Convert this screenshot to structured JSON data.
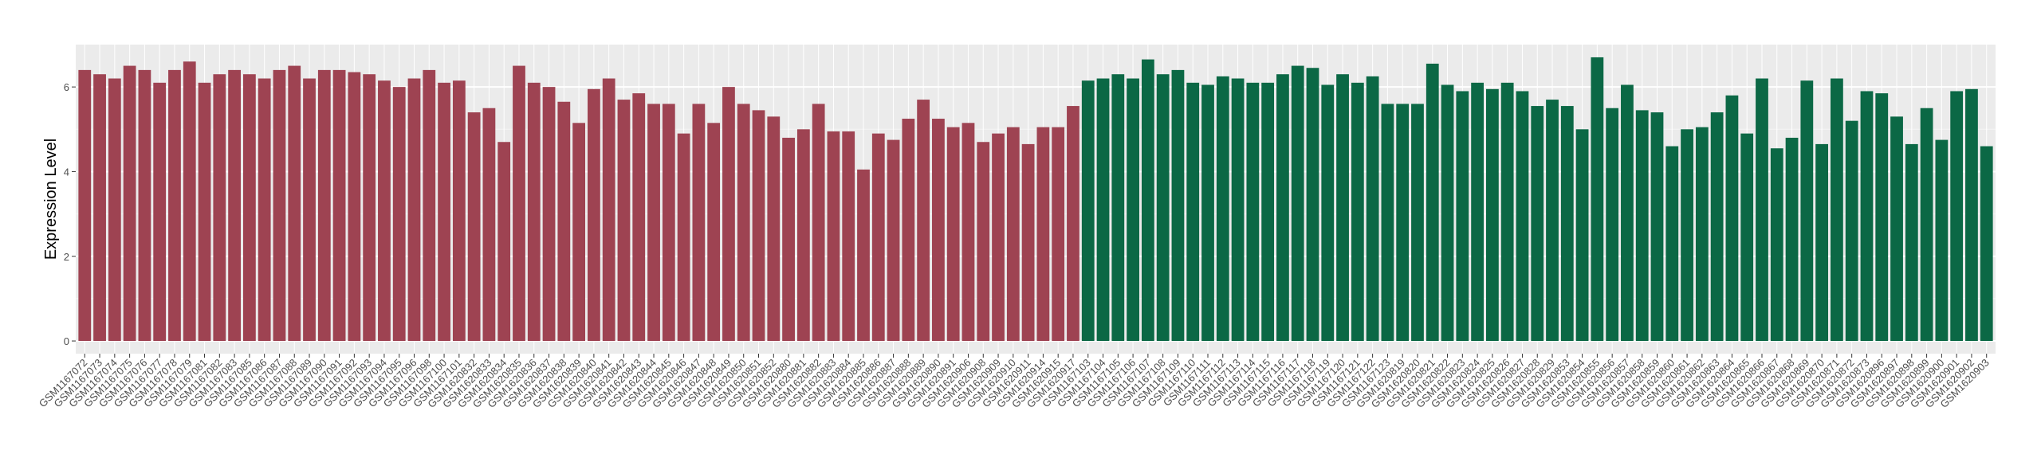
{
  "chart_data": {
    "type": "bar",
    "y_label": "Expression Level",
    "categories": [
      "GSM1167072",
      "GSM1167073",
      "GSM1167074",
      "GSM1167075",
      "GSM1167076",
      "GSM1167077",
      "GSM1167078",
      "GSM1167079",
      "GSM1167081",
      "GSM1167082",
      "GSM1167083",
      "GSM1167085",
      "GSM1167086",
      "GSM1167087",
      "GSM1167088",
      "GSM1167089",
      "GSM1167090",
      "GSM1167091",
      "GSM1167092",
      "GSM1167093",
      "GSM1167094",
      "GSM1167095",
      "GSM1167096",
      "GSM1167098",
      "GSM1167100",
      "GSM1167101",
      "GSM1620832",
      "GSM1620833",
      "GSM1620834",
      "GSM1620835",
      "GSM1620836",
      "GSM1620837",
      "GSM1620838",
      "GSM1620839",
      "GSM1620840",
      "GSM1620841",
      "GSM1620842",
      "GSM1620843",
      "GSM1620844",
      "GSM1620845",
      "GSM1620846",
      "GSM1620847",
      "GSM1620848",
      "GSM1620849",
      "GSM1620850",
      "GSM1620851",
      "GSM1620852",
      "GSM1620880",
      "GSM1620881",
      "GSM1620882",
      "GSM1620883",
      "GSM1620884",
      "GSM1620885",
      "GSM1620886",
      "GSM1620887",
      "GSM1620888",
      "GSM1620889",
      "GSM1620890",
      "GSM1620891",
      "GSM1620906",
      "GSM1620908",
      "GSM1620909",
      "GSM1620910",
      "GSM1620911",
      "GSM1620914",
      "GSM1620915",
      "GSM1620917",
      "GSM1167103",
      "GSM1167104",
      "GSM1167105",
      "GSM1167106",
      "GSM1167107",
      "GSM1167108",
      "GSM1167109",
      "GSM1167110",
      "GSM1167111",
      "GSM1167112",
      "GSM1167113",
      "GSM1167114",
      "GSM1167115",
      "GSM1167116",
      "GSM1167117",
      "GSM1167118",
      "GSM1167119",
      "GSM1167120",
      "GSM1167121",
      "GSM1167122",
      "GSM1167123",
      "GSM1620819",
      "GSM1620820",
      "GSM1620821",
      "GSM1620822",
      "GSM1620823",
      "GSM1620824",
      "GSM1620825",
      "GSM1620826",
      "GSM1620827",
      "GSM1620828",
      "GSM1620829",
      "GSM1620853",
      "GSM1620854",
      "GSM1620855",
      "GSM1620856",
      "GSM1620857",
      "GSM1620858",
      "GSM1620859",
      "GSM1620860",
      "GSM1620861",
      "GSM1620862",
      "GSM1620863",
      "GSM1620864",
      "GSM1620865",
      "GSM1620866",
      "GSM1620867",
      "GSM1620868",
      "GSM1620869",
      "GSM1620870",
      "GSM1620871",
      "GSM1620872",
      "GSM1620873",
      "GSM1620896",
      "GSM1620897",
      "GSM1620898",
      "GSM1620899",
      "GSM1620900",
      "GSM1620901",
      "GSM1620902",
      "GSM1620903"
    ],
    "values": [
      6.4,
      6.3,
      6.2,
      6.5,
      6.4,
      6.1,
      6.4,
      6.6,
      6.1,
      6.3,
      6.4,
      6.3,
      6.2,
      6.4,
      6.5,
      6.2,
      6.4,
      6.4,
      6.35,
      6.3,
      6.15,
      6.0,
      6.2,
      6.4,
      6.1,
      6.15,
      5.4,
      5.5,
      4.7,
      6.5,
      6.1,
      6.0,
      5.65,
      5.15,
      5.95,
      6.2,
      5.7,
      5.85,
      5.6,
      5.6,
      4.9,
      5.6,
      5.15,
      6.0,
      5.6,
      5.45,
      5.3,
      4.8,
      5.0,
      5.6,
      4.95,
      4.95,
      4.05,
      4.9,
      4.75,
      5.25,
      5.7,
      5.25,
      5.05,
      5.15,
      4.7,
      4.9,
      5.05,
      4.65,
      5.05,
      5.05,
      5.55,
      6.15,
      6.2,
      6.3,
      6.2,
      6.65,
      6.3,
      6.4,
      6.1,
      6.05,
      6.25,
      6.2,
      6.1,
      6.1,
      6.3,
      6.5,
      6.45,
      6.05,
      6.3,
      6.1,
      6.25,
      5.6,
      5.6,
      5.6,
      6.55,
      6.05,
      5.9,
      6.1,
      5.95,
      6.1,
      5.9,
      5.55,
      5.7,
      5.55,
      5.0,
      6.7,
      5.5,
      6.05,
      5.45,
      5.4,
      4.6,
      5.0,
      5.05,
      5.4,
      5.8,
      4.9,
      6.2,
      4.55,
      4.8,
      6.15,
      4.65,
      6.2,
      5.2,
      5.9,
      5.85,
      5.3,
      4.65,
      5.5,
      4.75,
      5.9,
      5.95,
      4.6
    ],
    "group_colors": [
      "#9e4352",
      "#0b6845"
    ],
    "group_sizes": [
      67,
      61
    ],
    "ylim": [
      -0.3,
      7.0
    ],
    "yticks": [
      0,
      2,
      4,
      6
    ],
    "grid": true
  }
}
